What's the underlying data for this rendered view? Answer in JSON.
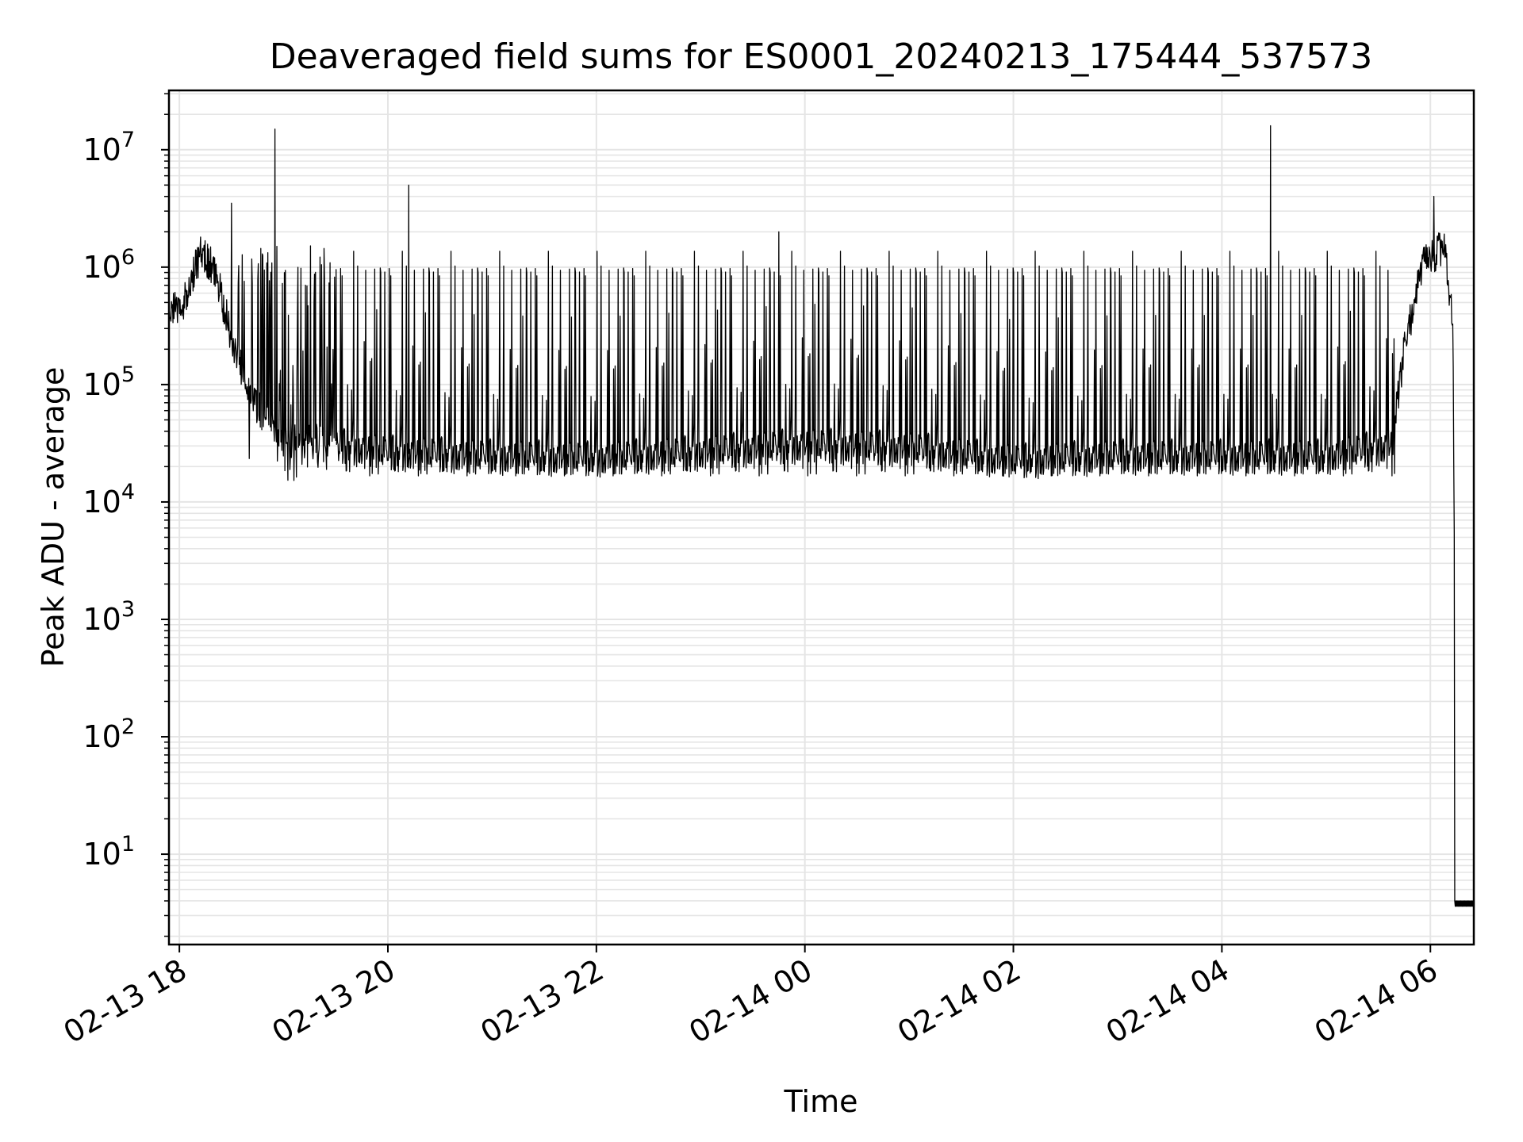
{
  "chart_data": {
    "type": "line",
    "title": "Deaveraged field sums for ES0001_20240213_175444_537573",
    "xlabel": "Time",
    "ylabel": "Peak ADU - average",
    "yscale": "log",
    "ylim": [
      1.7,
      32000000
    ],
    "xlim": [
      "2024-02-13 17:54",
      "2024-02-14 06:25"
    ],
    "grid": true,
    "line_color": "#000000",
    "grid_color": "#e5e5e5",
    "x_ticks": [
      {
        "value": "2024-02-13 18:00",
        "label": "02-13 18"
      },
      {
        "value": "2024-02-13 20:00",
        "label": "02-13 20"
      },
      {
        "value": "2024-02-13 22:00",
        "label": "02-13 22"
      },
      {
        "value": "2024-02-14 00:00",
        "label": "02-14 00"
      },
      {
        "value": "2024-02-14 02:00",
        "label": "02-14 02"
      },
      {
        "value": "2024-02-14 04:00",
        "label": "02-14 04"
      },
      {
        "value": "2024-02-14 06:00",
        "label": "02-14 06"
      }
    ],
    "y_ticks": [
      {
        "value": 10,
        "base": "10",
        "exp": "1"
      },
      {
        "value": 100,
        "base": "10",
        "exp": "2"
      },
      {
        "value": 1000,
        "base": "10",
        "exp": "3"
      },
      {
        "value": 10000,
        "base": "10",
        "exp": "4"
      },
      {
        "value": 100000,
        "base": "10",
        "exp": "5"
      },
      {
        "value": 1000000,
        "base": "10",
        "exp": "6"
      },
      {
        "value": 10000000,
        "base": "10",
        "exp": "7"
      }
    ],
    "series": [
      {
        "baseline": [
          {
            "x": "2024-02-13 17:54",
            "y": 400000
          },
          {
            "x": "2024-02-13 18:04",
            "y": 550000
          },
          {
            "x": "2024-02-13 18:12",
            "y": 1300000
          },
          {
            "x": "2024-02-13 18:20",
            "y": 1000000
          },
          {
            "x": "2024-02-13 18:30",
            "y": 250000
          },
          {
            "x": "2024-02-13 18:40",
            "y": 80000
          },
          {
            "x": "2024-02-13 19:00",
            "y": 35000
          },
          {
            "x": "2024-02-13 19:30",
            "y": 30000
          },
          {
            "x": "2024-02-13 20:00",
            "y": 26000
          },
          {
            "x": "2024-02-13 21:00",
            "y": 24000
          },
          {
            "x": "2024-02-13 22:00",
            "y": 23000
          },
          {
            "x": "2024-02-13 23:00",
            "y": 26000
          },
          {
            "x": "2024-02-14 00:00",
            "y": 30000
          },
          {
            "x": "2024-02-14 01:00",
            "y": 28000
          },
          {
            "x": "2024-02-14 02:00",
            "y": 22000
          },
          {
            "x": "2024-02-14 03:00",
            "y": 24000
          },
          {
            "x": "2024-02-14 04:00",
            "y": 24000
          },
          {
            "x": "2024-02-14 05:00",
            "y": 24000
          },
          {
            "x": "2024-02-14 05:38",
            "y": 30000
          },
          {
            "x": "2024-02-14 05:45",
            "y": 200000
          },
          {
            "x": "2024-02-14 05:55",
            "y": 1000000
          },
          {
            "x": "2024-02-14 06:08",
            "y": 1500000
          },
          {
            "x": "2024-02-14 06:13",
            "y": 300000
          },
          {
            "x": "2024-02-14 06:15",
            "y": 4
          },
          {
            "x": "2024-02-14 06:25",
            "y": 4
          }
        ],
        "spikes": [
          {
            "x": "2024-02-13 18:30",
            "y": 3500000
          },
          {
            "x": "2024-02-13 18:55",
            "y": 15000000
          },
          {
            "x": "2024-02-13 20:12",
            "y": 5000000
          },
          {
            "x": "2024-02-13 23:45",
            "y": 2000000
          },
          {
            "x": "2024-02-14 04:28",
            "y": 16000000
          },
          {
            "x": "2024-02-14 06:02",
            "y": 4000000
          }
        ],
        "upper_envelope_y": 1200000,
        "lower_envelope_y": 15000
      }
    ]
  }
}
